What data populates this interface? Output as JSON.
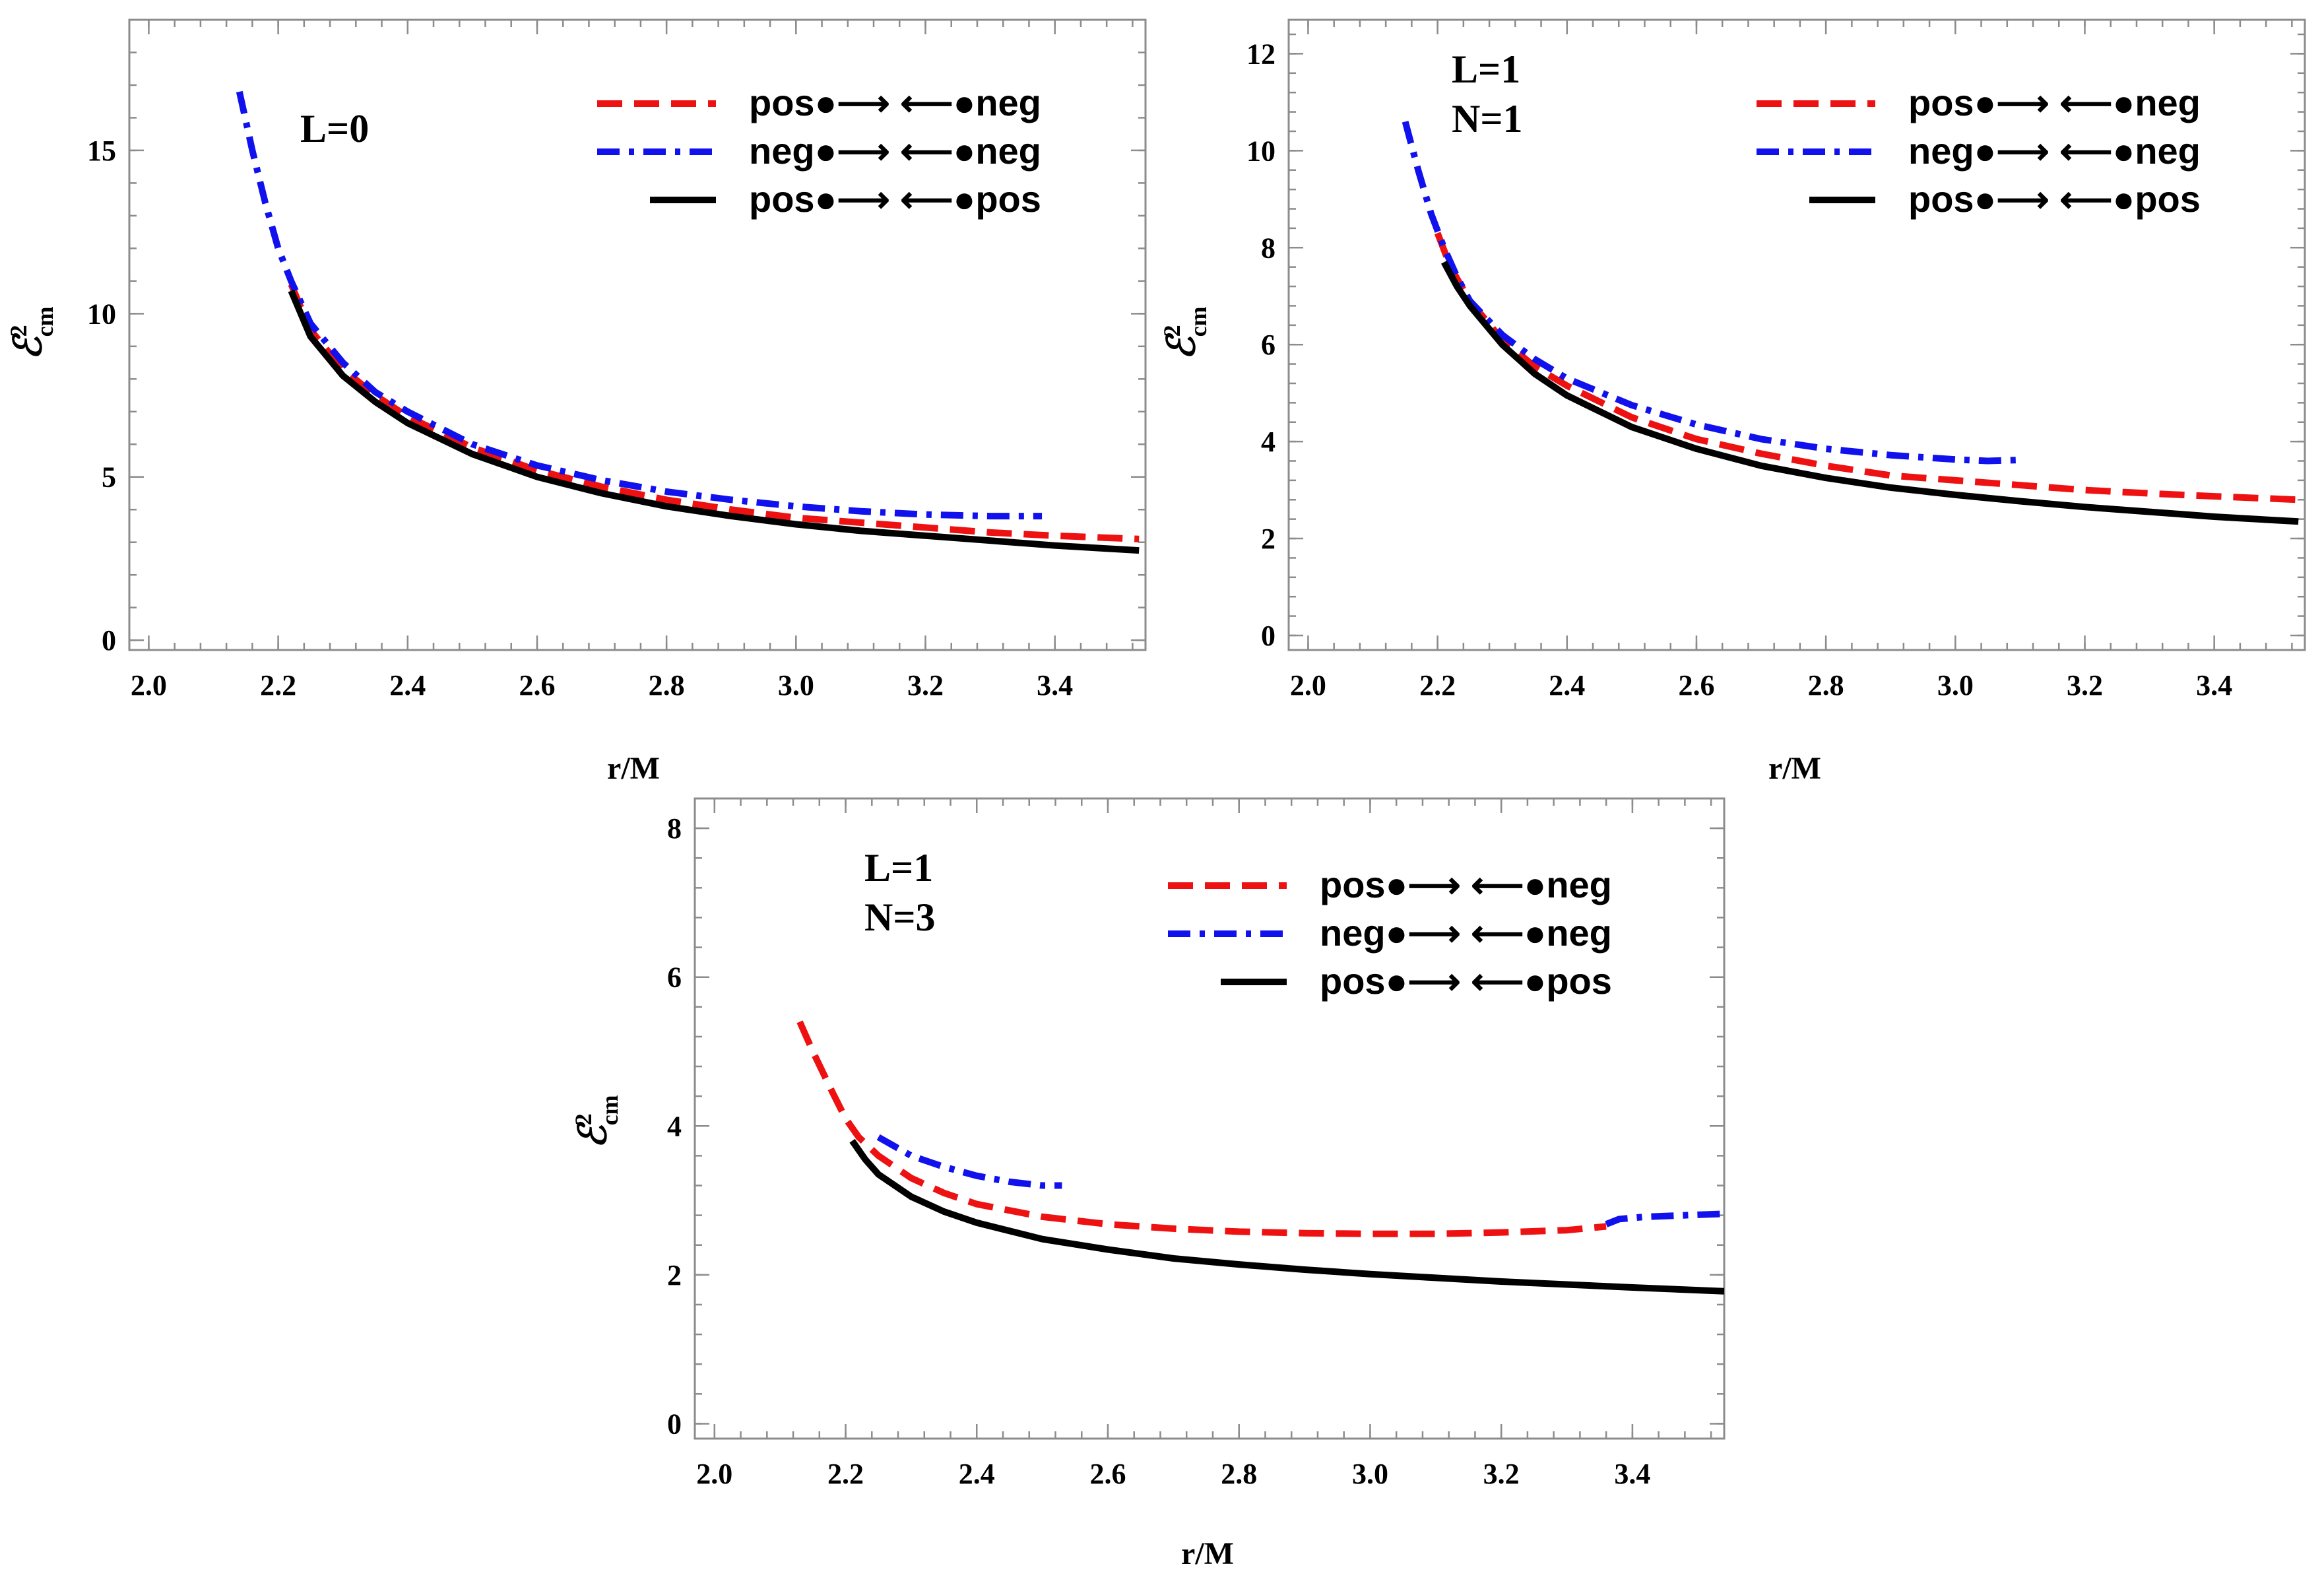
{
  "figure": {
    "legend_symbols": {
      "dot": "●",
      "arrow_right": "⟶",
      "arrow_left": "⟵"
    },
    "styles": {
      "pos_neg": {
        "color": "#ee1111",
        "dash": "dashed"
      },
      "neg_neg": {
        "color": "#1111ee",
        "dash": "dashdot"
      },
      "pos_pos": {
        "color": "#000000",
        "dash": "solid"
      }
    }
  },
  "chart_data": [
    {
      "type": "line",
      "id": "panel-L0",
      "annotation": [
        "L=0"
      ],
      "xlabel": "r/M",
      "ylabel": {
        "base": "ℰ",
        "sup": "2",
        "sub": "cm"
      },
      "xlim": [
        1.97,
        3.54
      ],
      "ylim": [
        -0.3,
        19.0
      ],
      "xticks": [
        2.0,
        2.2,
        2.4,
        2.6,
        2.8,
        3.0,
        3.2,
        3.4
      ],
      "xtick_labels": [
        "2.0",
        "2.2",
        "2.4",
        "2.6",
        "2.8",
        "3.0",
        "3.2",
        "3.4"
      ],
      "yticks": [
        0,
        5,
        10,
        15
      ],
      "ytick_labels": [
        "0",
        "5",
        "10",
        "15"
      ],
      "series": [
        {
          "key": "pos_neg",
          "legend": {
            "left": "pos",
            "right": "neg"
          },
          "x": [
            2.22,
            2.25,
            2.3,
            2.35,
            2.4,
            2.5,
            2.6,
            2.7,
            2.8,
            2.9,
            3.0,
            3.1,
            3.2,
            3.3,
            3.4,
            3.53
          ],
          "y": [
            10.9,
            9.5,
            8.3,
            7.5,
            6.85,
            5.9,
            5.2,
            4.7,
            4.3,
            4.0,
            3.75,
            3.6,
            3.45,
            3.3,
            3.2,
            3.1
          ]
        },
        {
          "key": "neg_neg",
          "legend": {
            "left": "neg",
            "right": "neg"
          },
          "x": [
            2.14,
            2.16,
            2.18,
            2.2,
            2.22,
            2.25,
            2.3,
            2.35,
            2.4,
            2.5,
            2.6,
            2.7,
            2.8,
            2.9,
            3.0,
            3.1,
            3.2,
            3.3,
            3.38
          ],
          "y": [
            16.8,
            15.0,
            13.4,
            12.0,
            11.0,
            9.7,
            8.5,
            7.6,
            7.0,
            6.0,
            5.35,
            4.9,
            4.55,
            4.3,
            4.1,
            3.95,
            3.85,
            3.8,
            3.8
          ]
        },
        {
          "key": "pos_pos",
          "legend": {
            "left": "pos",
            "right": "pos"
          },
          "x": [
            2.22,
            2.25,
            2.3,
            2.35,
            2.4,
            2.5,
            2.6,
            2.7,
            2.8,
            2.9,
            3.0,
            3.1,
            3.2,
            3.3,
            3.4,
            3.53
          ],
          "y": [
            10.7,
            9.3,
            8.1,
            7.3,
            6.65,
            5.7,
            5.0,
            4.5,
            4.1,
            3.8,
            3.55,
            3.35,
            3.2,
            3.05,
            2.9,
            2.75
          ]
        }
      ]
    },
    {
      "type": "line",
      "id": "panel-L1-N1",
      "annotation": [
        "L=1",
        "N=1"
      ],
      "xlabel": "r/M",
      "ylabel": {
        "base": "ℰ",
        "sup": "2",
        "sub": "cm"
      },
      "xlim": [
        1.97,
        3.54
      ],
      "ylim": [
        -0.3,
        12.7
      ],
      "xticks": [
        2.0,
        2.2,
        2.4,
        2.6,
        2.8,
        3.0,
        3.2,
        3.4
      ],
      "xtick_labels": [
        "2.0",
        "2.2",
        "2.4",
        "2.6",
        "2.8",
        "3.0",
        "3.2",
        "3.4"
      ],
      "yticks": [
        0,
        2,
        4,
        6,
        8,
        10,
        12
      ],
      "ytick_labels": [
        "0",
        "2",
        "4",
        "6",
        "8",
        "10",
        "12"
      ],
      "series": [
        {
          "key": "pos_neg",
          "legend": {
            "left": "pos",
            "right": "neg"
          },
          "x": [
            2.2,
            2.22,
            2.25,
            2.3,
            2.35,
            2.4,
            2.5,
            2.6,
            2.7,
            2.8,
            2.9,
            3.0,
            3.1,
            3.2,
            3.3,
            3.4,
            3.53
          ],
          "y": [
            8.3,
            7.6,
            6.9,
            6.1,
            5.55,
            5.15,
            4.5,
            4.05,
            3.75,
            3.5,
            3.3,
            3.2,
            3.1,
            3.0,
            2.93,
            2.87,
            2.8
          ]
        },
        {
          "key": "neg_neg",
          "legend": {
            "left": "neg",
            "right": "neg"
          },
          "x": [
            2.15,
            2.17,
            2.19,
            2.21,
            2.23,
            2.25,
            2.3,
            2.35,
            2.4,
            2.5,
            2.6,
            2.7,
            2.8,
            2.9,
            3.0,
            3.05,
            3.1
          ],
          "y": [
            10.6,
            9.6,
            8.7,
            8.0,
            7.4,
            6.9,
            6.2,
            5.7,
            5.3,
            4.75,
            4.35,
            4.05,
            3.85,
            3.72,
            3.63,
            3.6,
            3.62
          ]
        },
        {
          "key": "pos_pos",
          "legend": {
            "left": "pos",
            "right": "pos"
          },
          "x": [
            2.21,
            2.23,
            2.25,
            2.3,
            2.35,
            2.4,
            2.5,
            2.6,
            2.7,
            2.8,
            2.9,
            3.0,
            3.1,
            3.2,
            3.3,
            3.4,
            3.53
          ],
          "y": [
            7.7,
            7.2,
            6.8,
            6.0,
            5.4,
            4.95,
            4.3,
            3.85,
            3.5,
            3.25,
            3.05,
            2.9,
            2.77,
            2.65,
            2.55,
            2.45,
            2.35
          ]
        }
      ]
    },
    {
      "type": "line",
      "id": "panel-L1-N3",
      "annotation": [
        "L=1",
        "N=3"
      ],
      "xlabel": "r/M",
      "ylabel": {
        "base": "ℰ",
        "sup": "2",
        "sub": "cm"
      },
      "xlim": [
        1.97,
        3.54
      ],
      "ylim": [
        -0.2,
        8.4
      ],
      "xticks": [
        2.0,
        2.2,
        2.4,
        2.6,
        2.8,
        3.0,
        3.2,
        3.4
      ],
      "xtick_labels": [
        "2.0",
        "2.2",
        "2.4",
        "2.6",
        "2.8",
        "3.0",
        "3.2",
        "3.4"
      ],
      "yticks": [
        0,
        2,
        4,
        6,
        8
      ],
      "ytick_labels": [
        "0",
        "2",
        "4",
        "6",
        "8"
      ],
      "series": [
        {
          "key": "pos_neg",
          "legend": {
            "left": "pos",
            "right": "neg"
          },
          "x": [
            2.13,
            2.15,
            2.18,
            2.2,
            2.22,
            2.25,
            2.3,
            2.35,
            2.4,
            2.5,
            2.6,
            2.7,
            2.8,
            2.9,
            3.0,
            3.1,
            3.2,
            3.3,
            3.36
          ],
          "y": [
            5.4,
            5.0,
            4.45,
            4.1,
            3.85,
            3.6,
            3.3,
            3.1,
            2.95,
            2.78,
            2.68,
            2.62,
            2.58,
            2.56,
            2.55,
            2.55,
            2.57,
            2.6,
            2.65
          ]
        },
        {
          "key": "neg_neg",
          "legend": {
            "left": "neg",
            "right": "neg"
          },
          "x": [
            2.25,
            2.3,
            2.35,
            2.4,
            2.45,
            2.5,
            2.53
          ],
          "y": [
            3.85,
            3.6,
            3.45,
            3.33,
            3.25,
            3.2,
            3.2
          ]
        },
        {
          "key": "neg_neg_tail",
          "style": "neg_neg",
          "legend": null,
          "x": [
            3.36,
            3.38,
            3.42,
            3.48,
            3.54
          ],
          "y": [
            2.68,
            2.75,
            2.78,
            2.8,
            2.82
          ]
        },
        {
          "key": "pos_pos",
          "legend": {
            "left": "pos",
            "right": "pos"
          },
          "x": [
            2.21,
            2.23,
            2.25,
            2.3,
            2.35,
            2.4,
            2.5,
            2.6,
            2.7,
            2.8,
            2.9,
            3.0,
            3.1,
            3.2,
            3.3,
            3.4,
            3.54
          ],
          "y": [
            3.8,
            3.55,
            3.35,
            3.05,
            2.85,
            2.7,
            2.48,
            2.34,
            2.22,
            2.14,
            2.07,
            2.01,
            1.96,
            1.91,
            1.87,
            1.83,
            1.78
          ]
        }
      ]
    }
  ]
}
